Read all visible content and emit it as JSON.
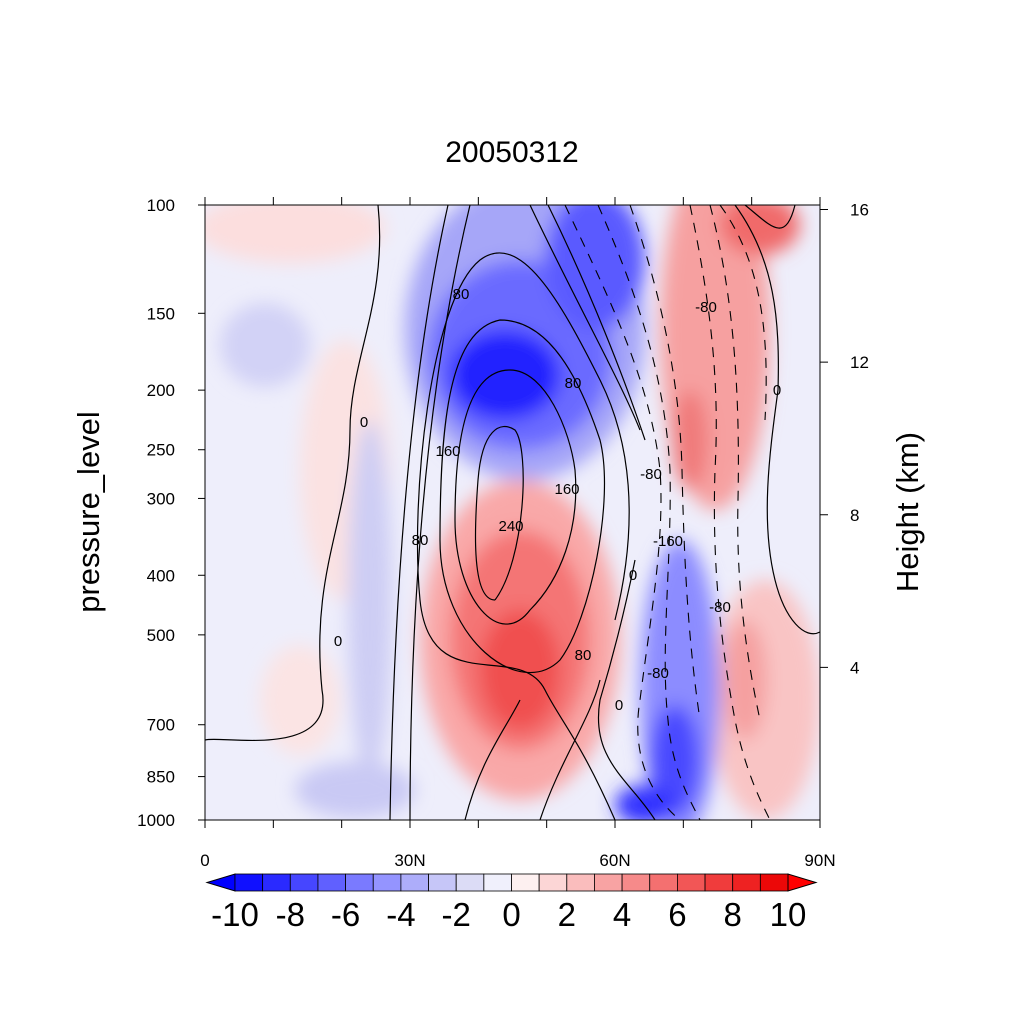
{
  "chart_data": {
    "type": "heatmap",
    "title": "20050312",
    "ylabel": "pressure_level",
    "ylabel_right": "Height (km)",
    "x_ticks": [
      "0",
      "30N",
      "60N",
      "90N"
    ],
    "x_range": [
      0,
      90
    ],
    "y_ticks": [
      "100",
      "150",
      "200",
      "250",
      "300",
      "400",
      "500",
      "700",
      "850",
      "1000"
    ],
    "y_range": [
      1000,
      100
    ],
    "y_scale": "log",
    "y_right_ticks": [
      "16",
      "12",
      "8",
      "4"
    ],
    "colorbar": {
      "labels": [
        "-10",
        "-8",
        "-6",
        "-4",
        "-2",
        "0",
        "2",
        "4",
        "6",
        "8",
        "10"
      ],
      "levels": [
        -10,
        -9,
        -8,
        -7,
        -6,
        -5,
        -4,
        -3,
        -2,
        -1,
        0,
        1,
        2,
        3,
        4,
        5,
        6,
        7,
        8,
        9,
        10
      ],
      "colors": [
        "#1010ff",
        "#2a2aff",
        "#4646ff",
        "#6060ff",
        "#7a7aff",
        "#9494ff",
        "#adadfa",
        "#c6c6f8",
        "#dcdcf6",
        "#f0f0fc",
        "#fdf0f0",
        "#fcd6d6",
        "#fabdbd",
        "#f8a3a3",
        "#f68a8a",
        "#f47070",
        "#f25656",
        "#f03c3c",
        "#ee2222",
        "#ec0808"
      ],
      "low_color": "#0000ff",
      "high_color": "#ff0000"
    },
    "contour_labels": [
      "80",
      "80",
      "160",
      "160",
      "240",
      "80",
      "80",
      "0",
      "0",
      "0",
      "0",
      "0",
      "-80",
      "-80",
      "-160",
      "-80",
      "-80"
    ],
    "grid": false,
    "legend": "colorbar bottom"
  }
}
